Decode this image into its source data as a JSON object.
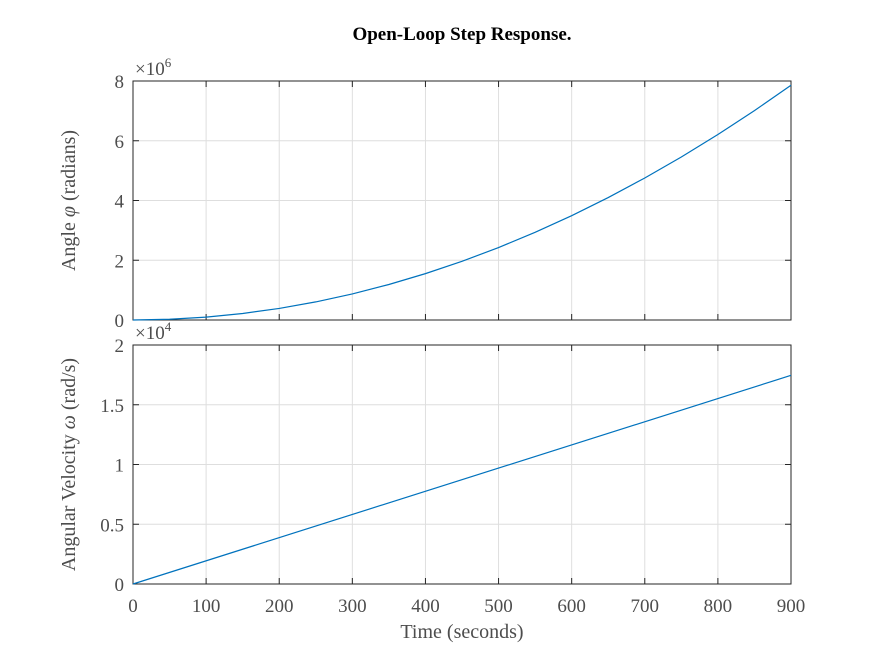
{
  "title": "Open-Loop Step Response.",
  "chart_data": [
    {
      "type": "line",
      "ylabel_prefix": "Angle ",
      "ylabel_symbol": "φ",
      "ylabel_suffix": " (radians)",
      "xlabel": "",
      "xlim": [
        0,
        900
      ],
      "ylim": [
        0,
        8000000
      ],
      "xticks": [
        0,
        100,
        200,
        300,
        400,
        500,
        600,
        700,
        800,
        900
      ],
      "yticks": [
        0,
        2000000,
        4000000,
        6000000,
        8000000
      ],
      "ytick_labels": [
        "0",
        "2",
        "4",
        "6",
        "8"
      ],
      "show_xtick_labels": false,
      "exponent_base": "×10",
      "exponent_power": "6",
      "grid": true,
      "color": "#0072bd",
      "x": [
        0,
        50,
        100,
        150,
        200,
        250,
        300,
        350,
        400,
        450,
        500,
        550,
        600,
        650,
        700,
        750,
        800,
        850,
        900
      ],
      "y": [
        0,
        24000,
        97000,
        218000,
        388000,
        606000,
        873000,
        1188000,
        1552000,
        1964000,
        2425000,
        2934000,
        3492000,
        4098000,
        4753000,
        5456000,
        6208000,
        7008000,
        7857000
      ]
    },
    {
      "type": "line",
      "ylabel_prefix": "Angular Velocity ",
      "ylabel_symbol": "ω",
      "ylabel_suffix": " (rad/s)",
      "xlabel": "Time (seconds)",
      "xlim": [
        0,
        900
      ],
      "ylim": [
        0,
        20000
      ],
      "xticks": [
        0,
        100,
        200,
        300,
        400,
        500,
        600,
        700,
        800,
        900
      ],
      "xtick_labels": [
        "0",
        "100",
        "200",
        "300",
        "400",
        "500",
        "600",
        "700",
        "800",
        "900"
      ],
      "yticks": [
        0,
        5000,
        10000,
        15000,
        20000
      ],
      "ytick_labels": [
        "0",
        "0.5",
        "1",
        "1.5",
        "2"
      ],
      "show_xtick_labels": true,
      "exponent_base": "×10",
      "exponent_power": "4",
      "grid": true,
      "color": "#0072bd",
      "x": [
        0,
        900
      ],
      "y": [
        0,
        17460
      ]
    }
  ]
}
